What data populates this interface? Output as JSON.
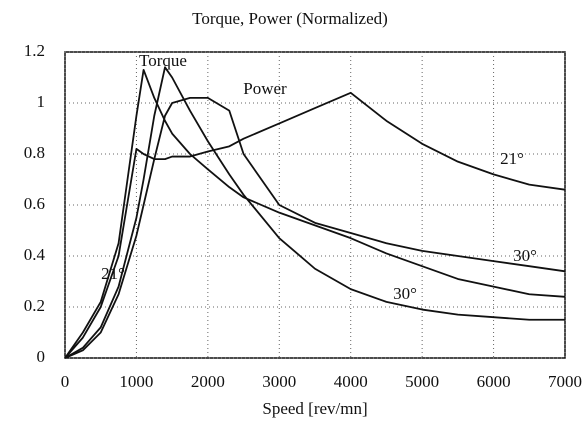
{
  "chart_data": {
    "type": "line",
    "title": "Torque, Power (Normalized)",
    "x_label": "Speed [rev/mn]",
    "x": [
      0,
      250,
      500,
      750,
      1000,
      1100,
      1250,
      1400,
      1500,
      1750,
      2000,
      2300,
      2500,
      3000,
      3500,
      4000,
      4500,
      5000,
      5500,
      6000,
      6500,
      7000
    ],
    "series": [
      {
        "color": "#111111",
        "values": [
          0,
          0.1,
          0.22,
          0.45,
          0.95,
          1.13,
          1.02,
          0.93,
          0.88,
          0.8,
          0.74,
          0.67,
          0.63,
          0.57,
          0.52,
          0.47,
          0.41,
          0.36,
          0.31,
          0.28,
          0.25,
          0.24
        ]
      },
      {
        "color": "#111111",
        "values": [
          0,
          0.04,
          0.12,
          0.28,
          0.55,
          0.7,
          0.95,
          1.14,
          1.1,
          0.97,
          0.85,
          0.72,
          0.64,
          0.47,
          0.35,
          0.27,
          0.22,
          0.19,
          0.17,
          0.16,
          0.15,
          0.15
        ]
      },
      {
        "color": "#111111",
        "values": [
          0,
          0.08,
          0.2,
          0.4,
          0.82,
          0.8,
          0.78,
          0.78,
          0.79,
          0.79,
          0.81,
          0.83,
          0.86,
          0.92,
          0.98,
          1.04,
          0.93,
          0.84,
          0.77,
          0.72,
          0.68,
          0.66
        ]
      },
      {
        "color": "#111111",
        "values": [
          0,
          0.03,
          0.1,
          0.25,
          0.48,
          0.6,
          0.78,
          0.95,
          1.0,
          1.02,
          1.02,
          0.97,
          0.8,
          0.6,
          0.53,
          0.49,
          0.45,
          0.42,
          0.4,
          0.38,
          0.36,
          0.34
        ]
      }
    ],
    "annotations": [
      "Torque",
      "Power",
      "21°",
      "21°",
      "30°",
      "30°"
    ],
    "xlim": [
      0,
      7000
    ],
    "xticks": [
      0,
      1000,
      2000,
      3000,
      4000,
      5000,
      6000,
      7000
    ],
    "ylim": [
      0,
      1.2
    ],
    "yticks": [
      0,
      0.2,
      0.4,
      0.6,
      0.8,
      1,
      1.2
    ],
    "grid": true
  }
}
